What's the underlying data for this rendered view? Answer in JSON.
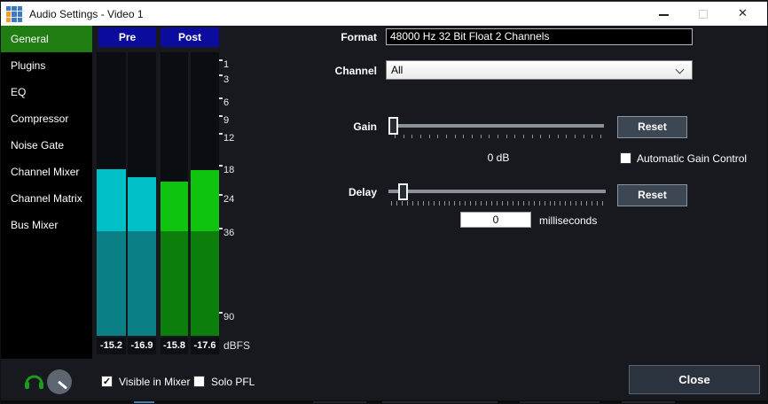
{
  "window": {
    "title": "Audio Settings - Video 1",
    "app_icon": {
      "name": "vmix-grid-icon",
      "blue": "#3b79c9",
      "orange": "#f0a229",
      "cells": [
        "b",
        "b",
        "b",
        "o",
        "b",
        "b",
        "o",
        "b",
        "b"
      ]
    }
  },
  "sidebar": {
    "items": [
      {
        "label": "General",
        "active": true
      },
      {
        "label": "Plugins",
        "active": false
      },
      {
        "label": "EQ",
        "active": false
      },
      {
        "label": "Compressor",
        "active": false
      },
      {
        "label": "Noise Gate",
        "active": false
      },
      {
        "label": "Channel Mixer",
        "active": false
      },
      {
        "label": "Channel Matrix",
        "active": false
      },
      {
        "label": "Bus Mixer",
        "active": false
      }
    ]
  },
  "meters": {
    "pre_label": "Pre",
    "post_label": "Post",
    "unit": "dBFS",
    "scale_ticks": [
      "1",
      "3",
      "6",
      "9",
      "12",
      "18",
      "24",
      "36",
      "90"
    ],
    "channels": [
      {
        "group": "pre",
        "readout": "-15.2",
        "level_pct": 58.8
      },
      {
        "group": "pre",
        "readout": "-16.9",
        "level_pct": 55.9
      },
      {
        "group": "post",
        "readout": "-15.8",
        "level_pct": 54.4
      },
      {
        "group": "post",
        "readout": "-17.6",
        "level_pct": 58.4
      }
    ],
    "colors": {
      "pre_bright": "#00bfc6",
      "pre_dark": "#0b7f86",
      "post_bright": "#0fc30f",
      "post_dark": "#0b7e0b",
      "header_blue": "#0b0b9d"
    }
  },
  "form": {
    "format": {
      "label": "Format",
      "value": "48000 Hz 32 Bit Float 2 Channels"
    },
    "channel": {
      "label": "Channel",
      "value": "All"
    },
    "gain": {
      "label": "Gain",
      "value_label": "0 dB",
      "reset_label": "Reset",
      "agc_label": "Automatic Gain Control",
      "agc_checked": false,
      "slider_pct": 0
    },
    "delay": {
      "label": "Delay",
      "value": "0",
      "unit_label": "milliseconds",
      "reset_label": "Reset",
      "slider_pct": 6.5
    }
  },
  "footer": {
    "visible_in_mixer": {
      "label": "Visible in Mixer",
      "checked": true
    },
    "solo_pfl": {
      "label": "Solo PFL",
      "checked": false
    },
    "close_label": "Close",
    "headphones_color": "#1f9a1f"
  },
  "icons": {
    "check": "✓"
  },
  "colors": {
    "sidebar_active_green": "#1f7d12",
    "background": "#17191e"
  }
}
